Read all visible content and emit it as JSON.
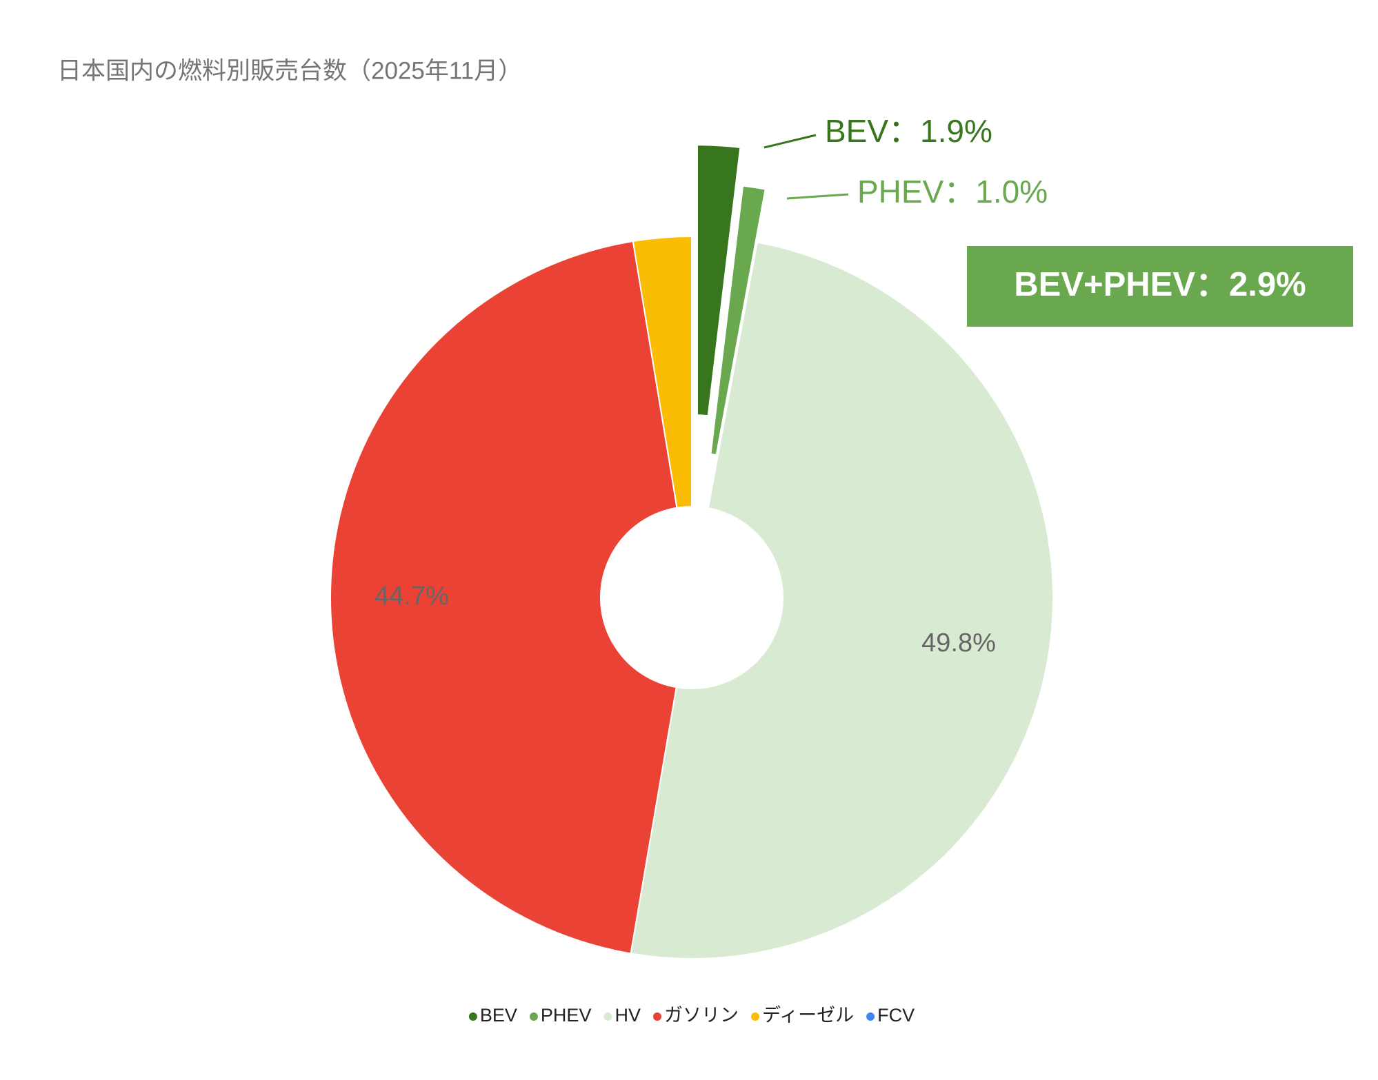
{
  "chart_data": {
    "type": "pie",
    "title": "日本国内の燃料別販売台数（2025年11月）",
    "categories": [
      "BEV",
      "PHEV",
      "HV",
      "ガソリン",
      "ディーゼル",
      "FCV"
    ],
    "values": [
      1.9,
      1.0,
      49.8,
      44.7,
      2.6,
      0
    ],
    "value_labels": [
      "BEV：1.9%",
      "PHEV：1.0%",
      "49.8%",
      "44.7%",
      null,
      null
    ],
    "colors": [
      "#38761d",
      "#6aa84f",
      "#d9ead3",
      "#ea4335",
      "#fbbc04",
      "#4285f4"
    ],
    "donut_hole": true,
    "legend": "bottom",
    "annotations": [
      "BEV+PHEV：2.9%"
    ]
  }
}
